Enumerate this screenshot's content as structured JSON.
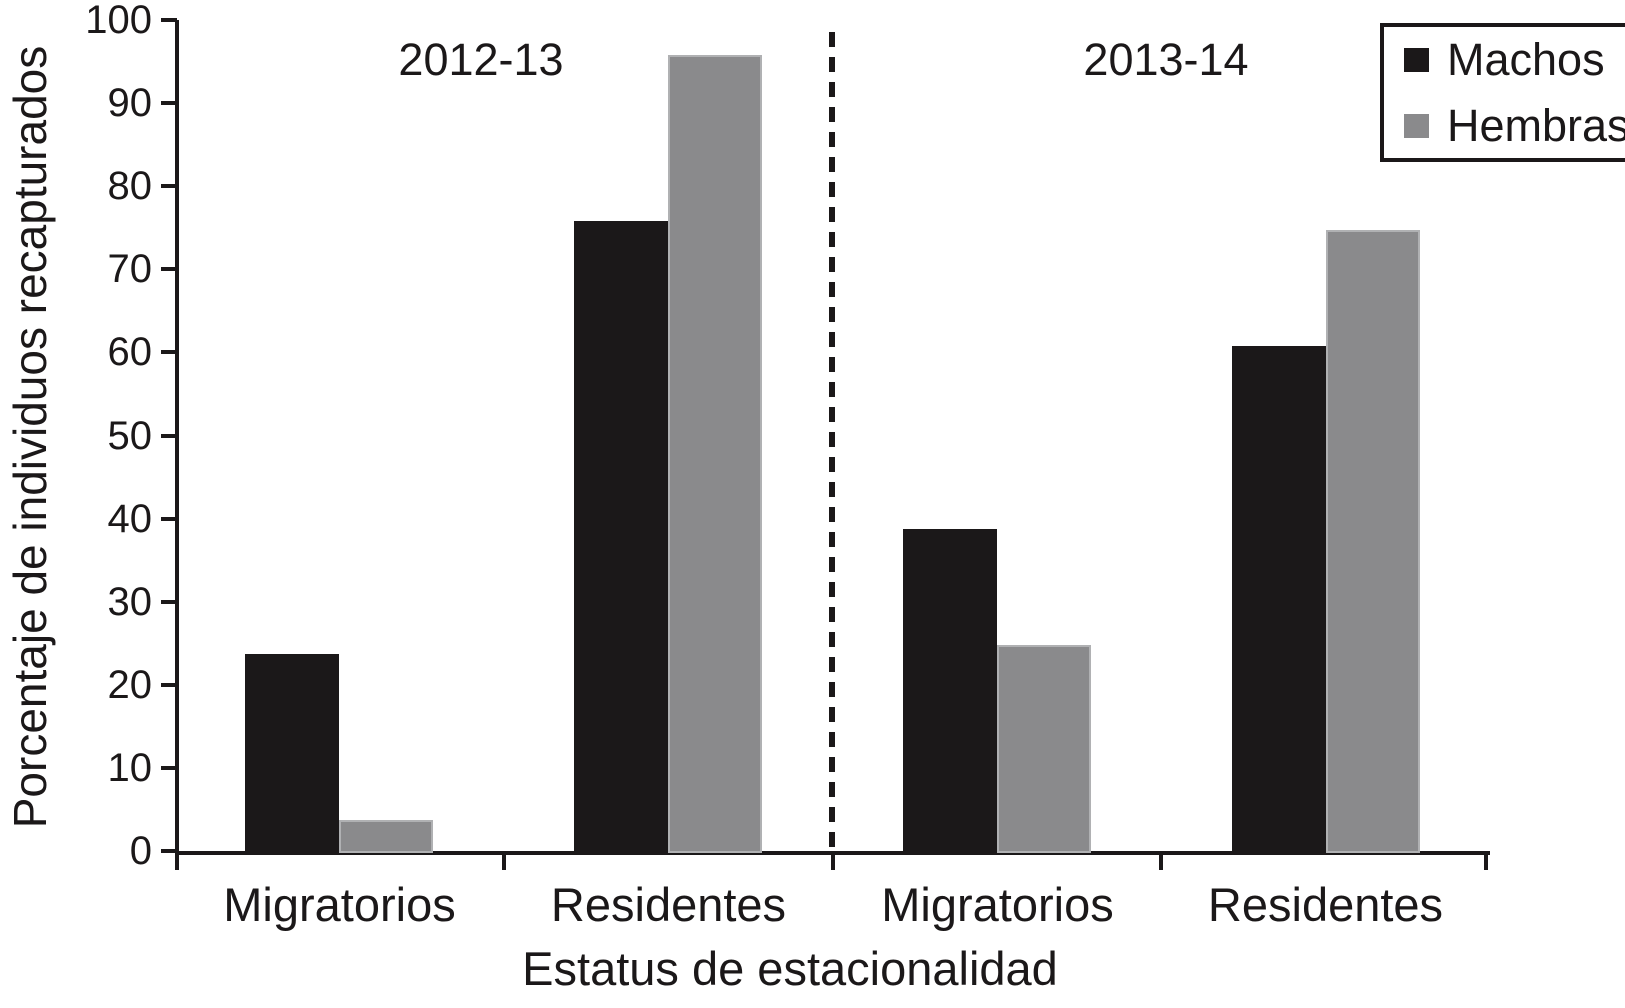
{
  "chart_data": {
    "type": "bar",
    "title": "",
    "xlabel": "Estatus de estacionalidad",
    "ylabel": "Porcentaje de individuos recapturados",
    "ylim": [
      0,
      100
    ],
    "y_ticks": [
      0,
      10,
      20,
      30,
      40,
      50,
      60,
      70,
      80,
      90,
      100
    ],
    "grid": false,
    "legend_position": "top-right",
    "panel_divider": "dashed-vertical-line",
    "period_labels": [
      "2012-13",
      "2013-14"
    ],
    "categories": [
      "Migratorios",
      "Residentes",
      "Migratorios",
      "Residentes"
    ],
    "series": [
      {
        "name": "Machos",
        "color": "#1b1819",
        "values": [
          24,
          76,
          39,
          61
        ]
      },
      {
        "name": "Hembras",
        "color": "#8a8a8c",
        "values": [
          4,
          96,
          25,
          75
        ]
      }
    ]
  },
  "legend": {
    "items": [
      {
        "label": "Machos",
        "color": "#1b1819"
      },
      {
        "label": "Hembras",
        "color": "#8a8a8c"
      }
    ]
  }
}
